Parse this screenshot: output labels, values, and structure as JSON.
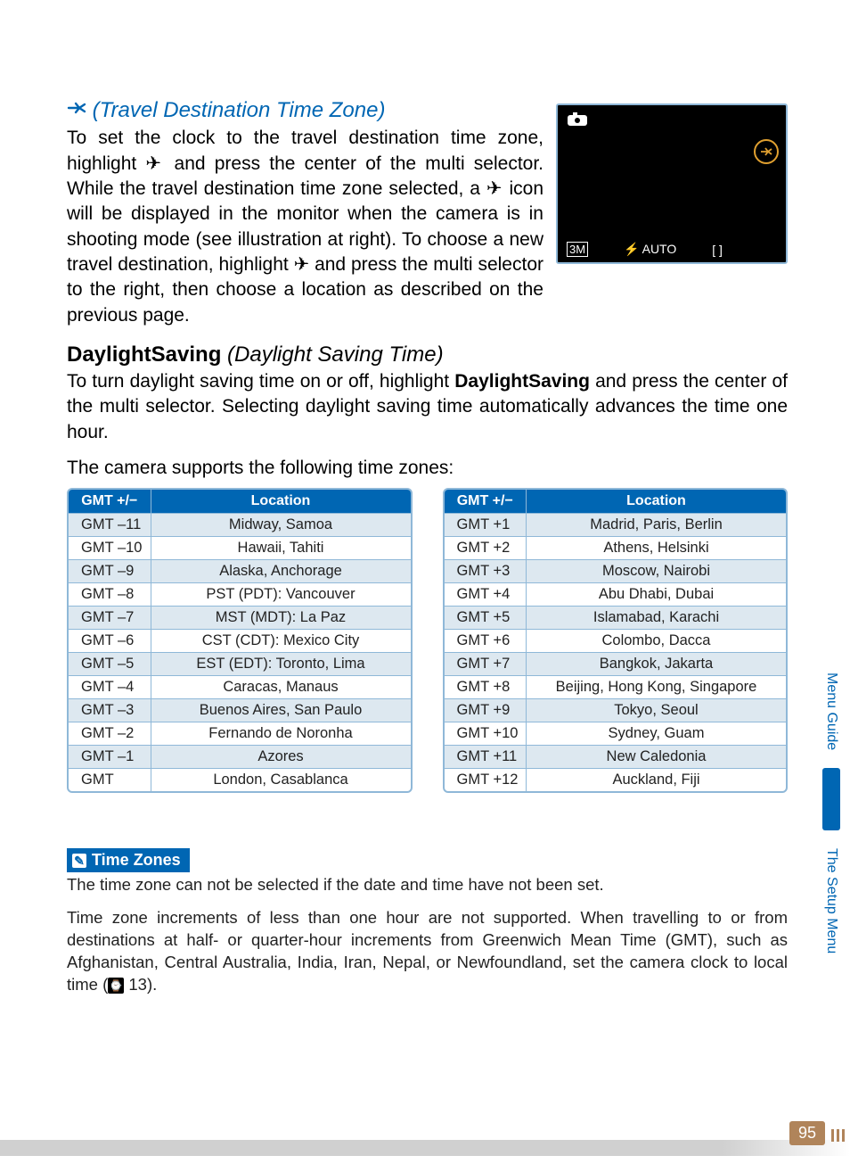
{
  "travel": {
    "title_italic": "(Travel Destination Time Zone)",
    "para_full": "To set the clock to the travel destination time zone, highlight ✈ and press the center of the multi selector. While the travel destination time zone selected, a ✈ icon will be displayed in the monitor when the camera is in shooting mode (see illustration at right). To choose a new travel destination, highlight ✈ and press the multi selector to the right, then choose a location as described on the previous page."
  },
  "daylight": {
    "heading_bold": "DaylightSaving",
    "heading_italic": "(Daylight Saving Time)",
    "para_a": "To turn daylight saving time on or off, highlight ",
    "para_bold": "DaylightSaving",
    "para_b": " and press the center of the multi selector. Selecting daylight saving time automatically advances the time one hour."
  },
  "table_intro": "The camera supports the following time zones:",
  "headers": {
    "gmt": "GMT +/−",
    "loc": "Location"
  },
  "left_rows": [
    {
      "g": "GMT –11",
      "l": "Midway, Samoa"
    },
    {
      "g": "GMT –10",
      "l": "Hawaii, Tahiti"
    },
    {
      "g": "GMT  –9",
      "l": "Alaska, Anchorage"
    },
    {
      "g": "GMT  –8",
      "l": "PST (PDT): Vancouver"
    },
    {
      "g": "GMT  –7",
      "l": "MST (MDT): La Paz"
    },
    {
      "g": "GMT  –6",
      "l": "CST (CDT): Mexico City"
    },
    {
      "g": "GMT  –5",
      "l": "EST (EDT): Toronto, Lima"
    },
    {
      "g": "GMT  –4",
      "l": "Caracas, Manaus"
    },
    {
      "g": "GMT  –3",
      "l": "Buenos Aires, San Paulo"
    },
    {
      "g": "GMT  –2",
      "l": "Fernando de Noronha"
    },
    {
      "g": "GMT  –1",
      "l": "Azores"
    },
    {
      "g": "GMT",
      "l": "London, Casablanca"
    }
  ],
  "right_rows": [
    {
      "g": "GMT  +1",
      "l": "Madrid, Paris, Berlin"
    },
    {
      "g": "GMT  +2",
      "l": "Athens, Helsinki"
    },
    {
      "g": "GMT  +3",
      "l": "Moscow, Nairobi"
    },
    {
      "g": "GMT  +4",
      "l": "Abu Dhabi, Dubai"
    },
    {
      "g": "GMT  +5",
      "l": "Islamabad, Karachi"
    },
    {
      "g": "GMT  +6",
      "l": "Colombo, Dacca"
    },
    {
      "g": "GMT  +7",
      "l": "Bangkok, Jakarta"
    },
    {
      "g": "GMT  +8",
      "l": "Beijing, Hong Kong, Singapore"
    },
    {
      "g": "GMT  +9",
      "l": "Tokyo, Seoul"
    },
    {
      "g": "GMT +10",
      "l": "Sydney, Guam"
    },
    {
      "g": "GMT +11",
      "l": "New Caledonia"
    },
    {
      "g": "GMT +12",
      "l": "Auckland, Fiji"
    }
  ],
  "note": {
    "heading": "Time Zones",
    "p1": "The time zone can not be selected if the date and time have not been set.",
    "p2": "Time zone increments of less than one hour are not supported. When travelling to or from destinations at half- or quarter-hour increments from Greenwich Mean Time (GMT), such as Afghanistan, Central Australia, India, Iran, Nepal, or Newfoundland, set the camera clock to local time (",
    "p2_end": " 13).",
    "ref_icon": "⌚"
  },
  "monitor": {
    "size": "3M",
    "flash": "⚡ AUTO",
    "bracket": "[    ]"
  },
  "side": {
    "tab1": "Menu Guide",
    "tab2": "The Setup Menu"
  },
  "page": "95",
  "colors": {
    "blue": "#0066b3",
    "border": "#8fb8d8",
    "tab_brown": "#b0845a"
  }
}
